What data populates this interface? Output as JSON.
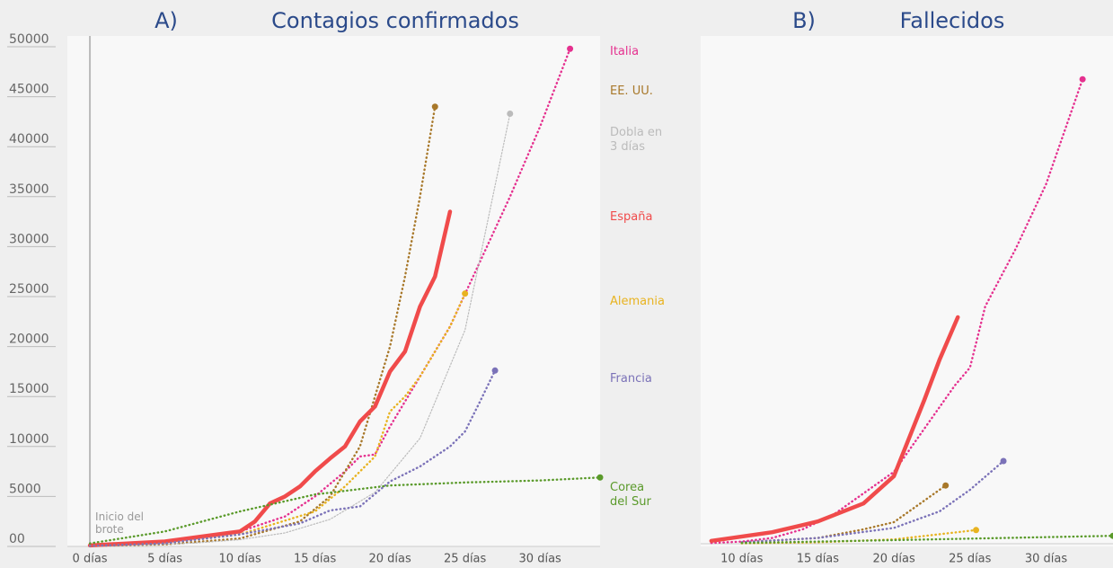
{
  "chart_data": [
    {
      "type": "line",
      "panel": "A)",
      "title": "Contagios confirmados",
      "annotation": "Inicio del brote",
      "xlim": [
        -1.5,
        34
      ],
      "ylim": [
        0,
        50000
      ],
      "xticks": [
        {
          "value": 0,
          "label": "0 días"
        },
        {
          "value": 5,
          "label": "5 días"
        },
        {
          "value": 10,
          "label": "10 días"
        },
        {
          "value": 15,
          "label": "15 días"
        },
        {
          "value": 20,
          "label": "20 días"
        },
        {
          "value": 25,
          "label": "25 días"
        },
        {
          "value": 30,
          "label": "30 días"
        }
      ],
      "yticks": [
        {
          "value": 0,
          "label": "00"
        },
        5000,
        10000,
        15000,
        20000,
        25000,
        30000,
        35000,
        40000,
        45000,
        50000
      ],
      "series": [
        {
          "name": "Italia",
          "color": "#e5318f",
          "x": [
            0,
            5,
            10,
            13,
            15,
            17,
            18,
            19,
            20,
            22,
            24,
            26,
            28,
            30,
            32
          ],
          "values": [
            100,
            500,
            1500,
            3000,
            5000,
            7500,
            9000,
            9200,
            12000,
            17000,
            22000,
            28500,
            35000,
            42000,
            49800
          ]
        },
        {
          "name": "EE. UU.",
          "color": "#a8782a",
          "x": [
            0,
            5,
            10,
            14,
            16,
            18,
            19,
            20,
            21,
            22,
            23
          ],
          "values": [
            50,
            200,
            800,
            2500,
            5000,
            10000,
            15000,
            20000,
            27000,
            35000,
            44000
          ]
        },
        {
          "name": "Dobla en 3 días",
          "color": "#bbbbbb",
          "x": [
            1,
            4,
            7,
            10,
            13,
            16,
            19,
            22,
            25,
            28
          ],
          "values": [
            85,
            169,
            338,
            676,
            1353,
            2706,
            5412,
            10825,
            21650,
            43300
          ]
        },
        {
          "name": "España",
          "color": "#f04b4b",
          "x": [
            0,
            5,
            10,
            11,
            12,
            13,
            14,
            15,
            16,
            17,
            18,
            19,
            20,
            21,
            22,
            23,
            24
          ],
          "values": [
            100,
            500,
            1500,
            2500,
            4300,
            5000,
            6000,
            7500,
            8800,
            10000,
            12500,
            14000,
            17500,
            19500,
            24000,
            27000,
            33500
          ]
        },
        {
          "name": "Alemania",
          "color": "#e8b320",
          "x": [
            0,
            5,
            10,
            15,
            17,
            19,
            20,
            21,
            22,
            24,
            25
          ],
          "values": [
            50,
            300,
            1200,
            3500,
            6000,
            9000,
            13500,
            15000,
            17000,
            22000,
            25300
          ]
        },
        {
          "name": "Francia",
          "color": "#7b72b8",
          "x": [
            0,
            5,
            10,
            14,
            16,
            18,
            20,
            22,
            24,
            25,
            26,
            27
          ],
          "values": [
            50,
            300,
            1200,
            2300,
            3600,
            4000,
            6500,
            8000,
            10000,
            11500,
            14500,
            17600
          ]
        },
        {
          "name": "Corea del Sur",
          "color": "#5a9a2a",
          "x": [
            0,
            5,
            10,
            15,
            20,
            25,
            30,
            34
          ],
          "values": [
            300,
            1500,
            3500,
            5200,
            6100,
            6400,
            6600,
            6900
          ]
        }
      ]
    },
    {
      "type": "line",
      "panel": "B)",
      "title": "Fallecidos",
      "xlim": [
        7.3,
        34.4
      ],
      "ylim": [
        0,
        7000
      ],
      "xticks": [
        {
          "value": 10,
          "label": "10 días"
        },
        {
          "value": 15,
          "label": "15 días"
        },
        {
          "value": 20,
          "label": "20 días"
        },
        {
          "value": 25,
          "label": "25 días"
        },
        {
          "value": 30,
          "label": "30 días"
        }
      ],
      "series": [
        {
          "name": "Italia",
          "color": "#e5318f",
          "x": [
            8,
            10,
            12,
            14,
            16,
            18,
            20,
            22,
            24,
            25,
            26,
            28,
            30,
            32.4
          ],
          "values": [
            10,
            30,
            80,
            200,
            400,
            700,
            1000,
            1600,
            2200,
            2450,
            3300,
            4100,
            5000,
            6460
          ]
        },
        {
          "name": "EE. UU.",
          "color": "#a8782a",
          "x": [
            10,
            15,
            18,
            20,
            23.4
          ],
          "values": [
            20,
            80,
            200,
            300,
            810
          ]
        },
        {
          "name": "España",
          "color": "#f04b4b",
          "x": [
            8,
            12,
            15,
            18,
            20,
            22,
            23,
            24.2
          ],
          "values": [
            40,
            160,
            310,
            560,
            940,
            2000,
            2560,
            3150
          ]
        },
        {
          "name": "Alemania",
          "color": "#e8b320",
          "x": [
            10,
            15,
            20,
            25.4
          ],
          "values": [
            5,
            20,
            60,
            190
          ]
        },
        {
          "name": "Francia",
          "color": "#7b72b8",
          "x": [
            10,
            15,
            20,
            23,
            25,
            27.2
          ],
          "values": [
            20,
            80,
            220,
            450,
            750,
            1150
          ]
        },
        {
          "name": "Corea del Sur",
          "color": "#5a9a2a",
          "x": [
            10,
            20,
            34.4
          ],
          "values": [
            10,
            50,
            110
          ]
        }
      ]
    }
  ]
}
